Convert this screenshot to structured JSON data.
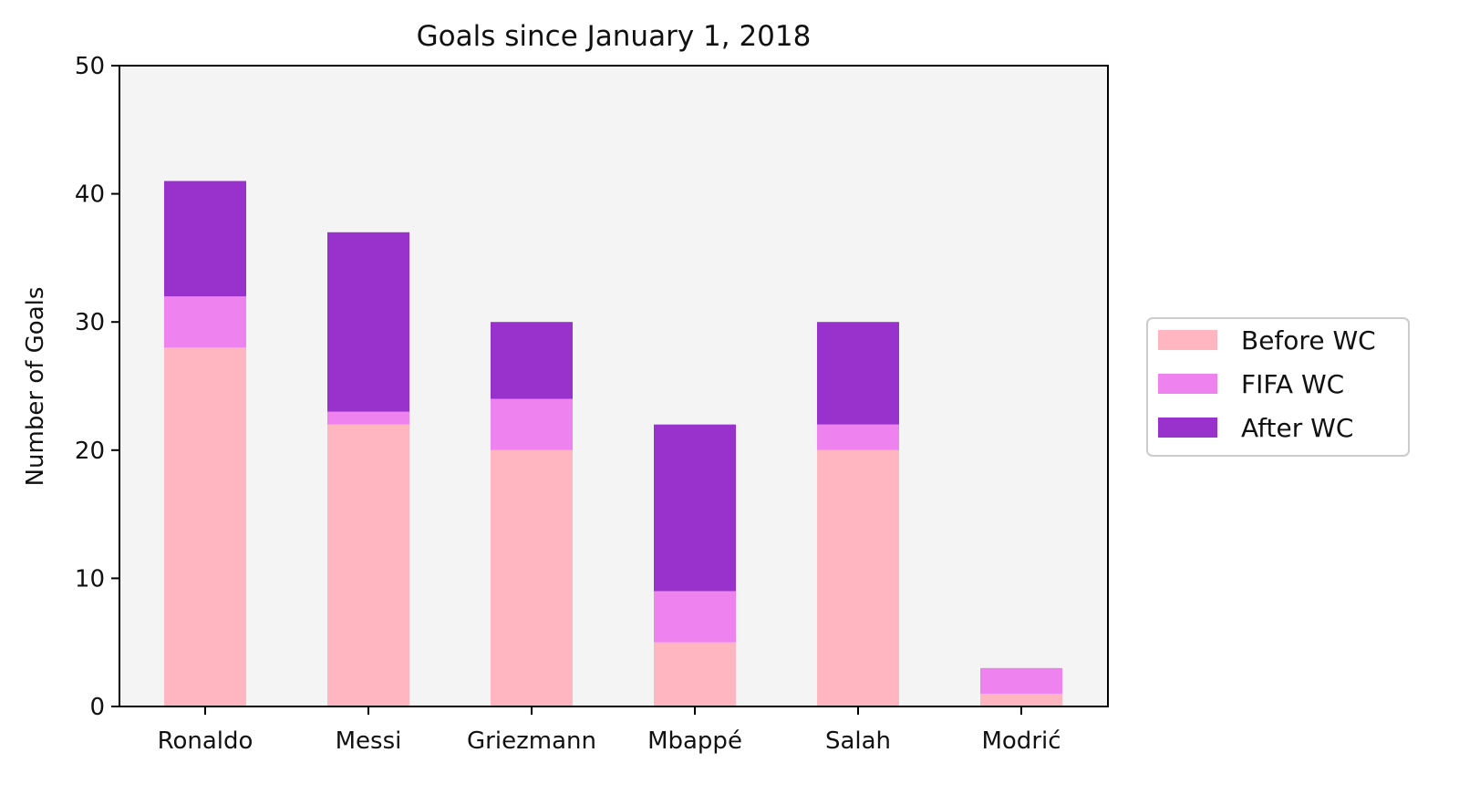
{
  "chart_data": {
    "type": "bar",
    "stacked": true,
    "title": "Goals since January 1, 2018",
    "xlabel": "",
    "ylabel": "Number of Goals",
    "ylim": [
      0,
      50
    ],
    "yticks": [
      0,
      10,
      20,
      30,
      40,
      50
    ],
    "grid": false,
    "legend_position": "right",
    "plot_background": "#f4f4f4",
    "categories": [
      "Ronaldo",
      "Messi",
      "Griezmann",
      "Mbappé",
      "Salah",
      "Modrić"
    ],
    "series": [
      {
        "name": "Before WC",
        "color": "#ffb6c1",
        "values": [
          28,
          22,
          20,
          5,
          20,
          1
        ]
      },
      {
        "name": "FIFA WC",
        "color": "#ee82ee",
        "values": [
          4,
          1,
          4,
          4,
          2,
          2
        ]
      },
      {
        "name": "After WC",
        "color": "#9932cc",
        "values": [
          9,
          14,
          6,
          13,
          8,
          0
        ]
      }
    ]
  }
}
